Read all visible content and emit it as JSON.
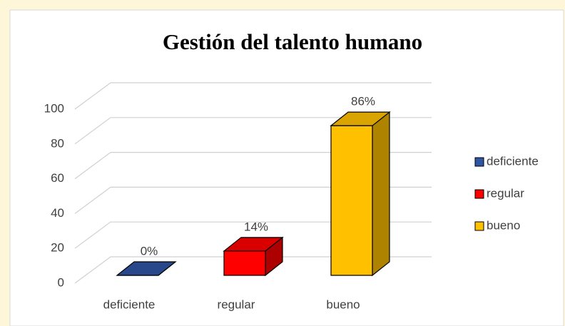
{
  "chart_data": {
    "type": "bar3d",
    "title": "Gestión del talento humano",
    "categories": [
      "deficiente",
      "regular",
      "bueno"
    ],
    "values": [
      0,
      14,
      86
    ],
    "value_labels": [
      "0%",
      "14%",
      "86%"
    ],
    "colors": [
      "#2f55a4",
      "#ff0000",
      "#ffc000"
    ],
    "ylim": [
      0,
      100
    ],
    "yticks": [
      0,
      20,
      40,
      60,
      80,
      100
    ],
    "grid": true,
    "legend": "right"
  }
}
